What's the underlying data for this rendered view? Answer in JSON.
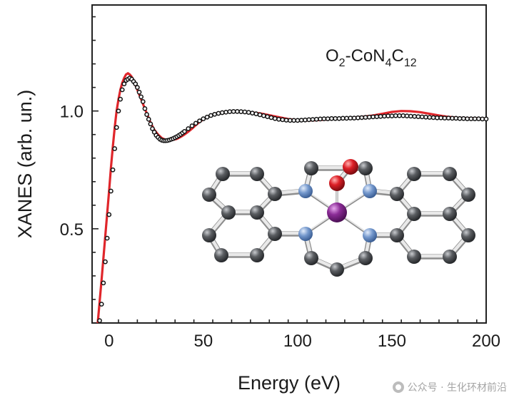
{
  "chart_data": {
    "type": "line",
    "xlabel": "Energy (eV)",
    "ylabel": "XANES (arb. un.)",
    "xlim": [
      -9,
      200
    ],
    "ylim": [
      0.1,
      1.45
    ],
    "xticks": [
      0,
      50,
      100,
      150,
      200
    ],
    "yticks": [
      0.5,
      1.0
    ],
    "xtick_labels": [
      "0",
      "50",
      "100",
      "150",
      "200"
    ],
    "ytick_labels": [
      "0.5",
      "1.0"
    ],
    "annotation": "O2-CoN4C12",
    "grid": false,
    "series": [
      {
        "style": "red-line",
        "color": "#e0262b",
        "x": [
          -6,
          -4,
          -2,
          0,
          1,
          2,
          3,
          4,
          5,
          6,
          7,
          8,
          9,
          10,
          11,
          12,
          13,
          14,
          15,
          16,
          17,
          18,
          20,
          22,
          24,
          26,
          28,
          30,
          32,
          34,
          36,
          38,
          40,
          42,
          44,
          46,
          48,
          50,
          53,
          56,
          60,
          64,
          68,
          72,
          76,
          80,
          85,
          90,
          95,
          100,
          105,
          110,
          115,
          120,
          125,
          130,
          135,
          140,
          145,
          150,
          155,
          160,
          165,
          170,
          175,
          180,
          185,
          190,
          195,
          200
        ],
        "y": [
          0.1,
          0.28,
          0.47,
          0.66,
          0.76,
          0.85,
          0.93,
          1.0,
          1.05,
          1.09,
          1.12,
          1.14,
          1.155,
          1.16,
          1.155,
          1.145,
          1.13,
          1.11,
          1.09,
          1.07,
          1.05,
          1.03,
          0.99,
          0.95,
          0.92,
          0.9,
          0.885,
          0.878,
          0.876,
          0.878,
          0.882,
          0.89,
          0.9,
          0.912,
          0.925,
          0.94,
          0.953,
          0.965,
          0.977,
          0.988,
          0.995,
          0.998,
          0.998,
          0.996,
          0.993,
          0.99,
          0.982,
          0.974,
          0.966,
          0.961,
          0.96,
          0.961,
          0.964,
          0.968,
          0.97,
          0.972,
          0.976,
          0.981,
          0.988,
          0.996,
          1.0,
          0.999,
          0.995,
          0.988,
          0.981,
          0.975,
          0.971,
          0.97,
          0.969,
          0.968
        ]
      },
      {
        "style": "open-circles",
        "color": "#111111",
        "x": [
          -5,
          -4,
          -3,
          -2,
          -1,
          0,
          1,
          2,
          3,
          4,
          5,
          6,
          7,
          8,
          9,
          10,
          11,
          12,
          13,
          14,
          15,
          16,
          17,
          18,
          19,
          20,
          21,
          22,
          23,
          24,
          25,
          26,
          27,
          28,
          29,
          30,
          31,
          32,
          33,
          34,
          35,
          36,
          37,
          38,
          39,
          40,
          42,
          44,
          46,
          48,
          50,
          52,
          54,
          56,
          58,
          60,
          62,
          64,
          66,
          68,
          70,
          72,
          74,
          76,
          78,
          80,
          82,
          84,
          86,
          88,
          90,
          92,
          94,
          96,
          98,
          100,
          102,
          104,
          106,
          108,
          110,
          112,
          114,
          116,
          118,
          120,
          122,
          124,
          126,
          128,
          130,
          132,
          134,
          136,
          138,
          140,
          142,
          144,
          146,
          148,
          150,
          152,
          154,
          156,
          158,
          160,
          162,
          164,
          166,
          168,
          170,
          172,
          174,
          176,
          178,
          180,
          182,
          184,
          186,
          188,
          190,
          192,
          194,
          196,
          198,
          200
        ],
        "y": [
          0.11,
          0.18,
          0.27,
          0.36,
          0.46,
          0.56,
          0.66,
          0.75,
          0.84,
          0.93,
          1.0,
          1.05,
          1.09,
          1.115,
          1.13,
          1.135,
          1.14,
          1.135,
          1.125,
          1.115,
          1.1,
          1.08,
          1.06,
          1.04,
          1.01,
          0.985,
          0.965,
          0.945,
          0.925,
          0.91,
          0.897,
          0.888,
          0.88,
          0.876,
          0.874,
          0.874,
          0.875,
          0.877,
          0.88,
          0.883,
          0.887,
          0.891,
          0.896,
          0.901,
          0.907,
          0.913,
          0.925,
          0.937,
          0.948,
          0.958,
          0.967,
          0.974,
          0.981,
          0.986,
          0.99,
          0.993,
          0.995,
          0.997,
          0.998,
          0.998,
          0.997,
          0.996,
          0.994,
          0.991,
          0.988,
          0.984,
          0.98,
          0.976,
          0.972,
          0.968,
          0.965,
          0.963,
          0.961,
          0.96,
          0.96,
          0.96,
          0.961,
          0.962,
          0.963,
          0.964,
          0.965,
          0.966,
          0.967,
          0.967,
          0.968,
          0.968,
          0.968,
          0.969,
          0.969,
          0.97,
          0.97,
          0.971,
          0.972,
          0.973,
          0.974,
          0.975,
          0.976,
          0.977,
          0.978,
          0.979,
          0.979,
          0.98,
          0.98,
          0.98,
          0.979,
          0.978,
          0.977,
          0.976,
          0.975,
          0.974,
          0.973,
          0.972,
          0.971,
          0.971,
          0.97,
          0.97,
          0.969,
          0.969,
          0.968,
          0.968,
          0.967,
          0.967,
          0.967,
          0.967,
          0.966,
          0.966
        ]
      }
    ],
    "inset": {
      "description_hidden": true,
      "atom_colors": {
        "carbon": "#4d4f52",
        "nitrogen": "#6f93c8",
        "cobalt": "#7a2a85",
        "oxygen": "#d21f26"
      }
    }
  },
  "watermark": {
    "text": "公众号 · 生化环材前沿"
  }
}
